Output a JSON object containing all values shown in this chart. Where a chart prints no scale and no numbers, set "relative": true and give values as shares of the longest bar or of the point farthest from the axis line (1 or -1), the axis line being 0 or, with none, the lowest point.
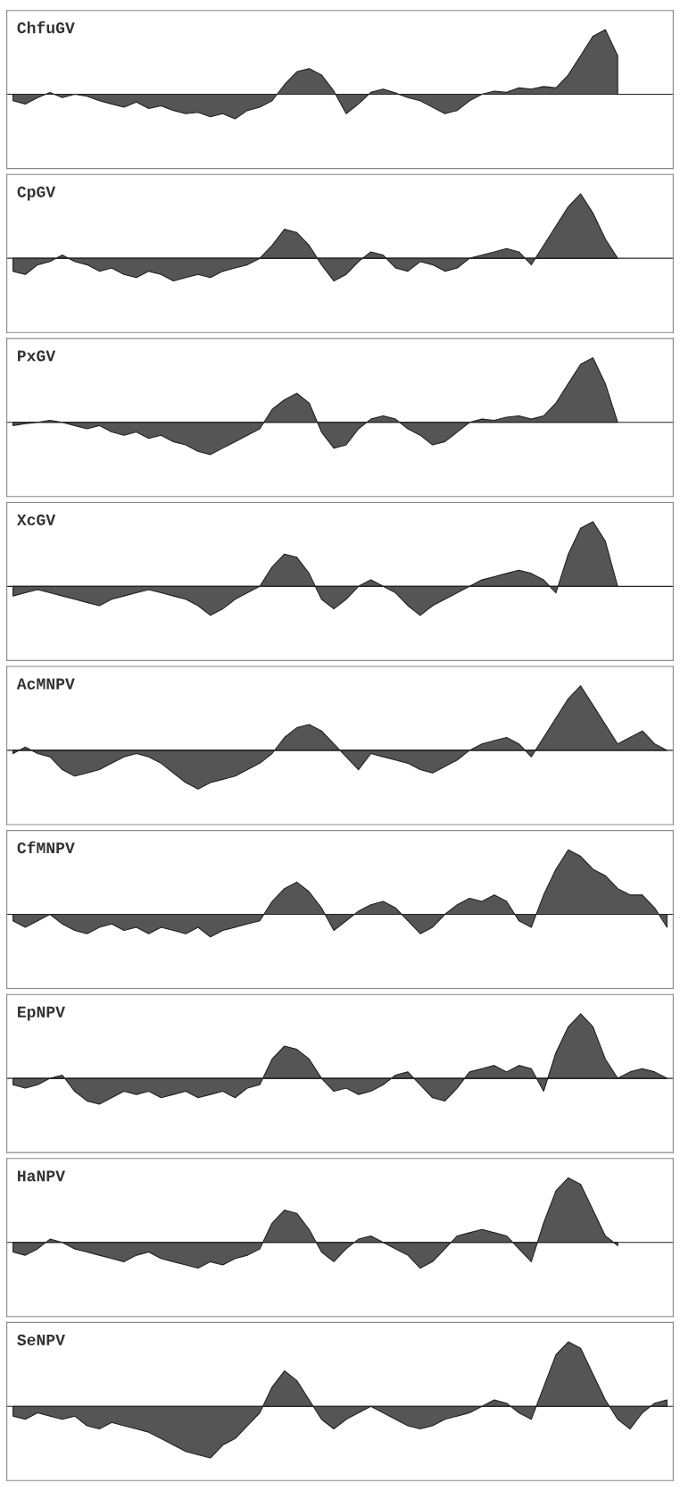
{
  "chart_data": [
    {
      "type": "area",
      "title": "ChfuGV",
      "relative": true,
      "color": "#555555",
      "categories": [
        null,
        null,
        null,
        null,
        null,
        null,
        null,
        null,
        null,
        null,
        null,
        null,
        null,
        null,
        null,
        null,
        null,
        null,
        null,
        null,
        null,
        null,
        null,
        null,
        null,
        null,
        null,
        null,
        null,
        null,
        null,
        null,
        null,
        null,
        null,
        null,
        null,
        null,
        null,
        null,
        null,
        null,
        null,
        null,
        null,
        null,
        null,
        null,
        null,
        null,
        null,
        null,
        null,
        null
      ],
      "values": [
        -0.1,
        -0.15,
        -0.05,
        0.03,
        -0.05,
        0.0,
        -0.03,
        -0.1,
        -0.15,
        -0.2,
        -0.12,
        -0.22,
        -0.18,
        -0.25,
        -0.3,
        -0.28,
        -0.35,
        -0.3,
        -0.38,
        -0.25,
        -0.2,
        -0.1,
        0.15,
        0.35,
        0.4,
        0.3,
        0.05,
        -0.3,
        -0.15,
        0.03,
        0.08,
        0.02,
        -0.05,
        -0.1,
        -0.2,
        -0.3,
        -0.25,
        -0.1,
        0.0,
        0.05,
        0.03,
        0.1,
        0.08,
        0.12,
        0.1,
        0.3,
        0.6,
        0.9,
        1.0,
        0.6,
        null,
        null,
        null,
        null
      ]
    },
    {
      "type": "area",
      "title": "CpGV",
      "relative": true,
      "color": "#555555",
      "categories": [
        null,
        null,
        null,
        null,
        null,
        null,
        null,
        null,
        null,
        null,
        null,
        null,
        null,
        null,
        null,
        null,
        null,
        null,
        null,
        null,
        null,
        null,
        null,
        null,
        null,
        null,
        null,
        null,
        null,
        null,
        null,
        null,
        null,
        null,
        null,
        null,
        null,
        null,
        null,
        null,
        null,
        null,
        null,
        null,
        null,
        null,
        null,
        null,
        null,
        null,
        null,
        null,
        null,
        null
      ],
      "values": [
        -0.2,
        -0.25,
        -0.1,
        -0.05,
        0.05,
        -0.05,
        -0.1,
        -0.2,
        -0.15,
        -0.25,
        -0.3,
        -0.2,
        -0.25,
        -0.35,
        -0.3,
        -0.25,
        -0.3,
        -0.2,
        -0.15,
        -0.1,
        0.0,
        0.2,
        0.45,
        0.4,
        0.2,
        -0.1,
        -0.35,
        -0.25,
        -0.05,
        0.1,
        0.05,
        -0.15,
        -0.2,
        -0.05,
        -0.1,
        -0.2,
        -0.15,
        0.0,
        0.05,
        0.1,
        0.15,
        0.1,
        -0.1,
        0.2,
        0.5,
        0.8,
        1.0,
        0.7,
        0.3,
        0.0,
        null,
        null,
        null,
        null
      ]
    },
    {
      "type": "area",
      "title": "PxGV",
      "relative": true,
      "color": "#555555",
      "categories": [
        null,
        null,
        null,
        null,
        null,
        null,
        null,
        null,
        null,
        null,
        null,
        null,
        null,
        null,
        null,
        null,
        null,
        null,
        null,
        null,
        null,
        null,
        null,
        null,
        null,
        null,
        null,
        null,
        null,
        null,
        null,
        null,
        null,
        null,
        null,
        null,
        null,
        null,
        null,
        null,
        null,
        null,
        null,
        null,
        null,
        null,
        null,
        null,
        null,
        null,
        null,
        null,
        null,
        null
      ],
      "values": [
        -0.05,
        -0.02,
        0.0,
        0.03,
        0.0,
        -0.05,
        -0.1,
        -0.05,
        -0.15,
        -0.2,
        -0.15,
        -0.25,
        -0.2,
        -0.3,
        -0.35,
        -0.45,
        -0.5,
        -0.4,
        -0.3,
        -0.2,
        -0.1,
        0.2,
        0.35,
        0.45,
        0.3,
        -0.15,
        -0.4,
        -0.35,
        -0.1,
        0.05,
        0.1,
        0.05,
        -0.1,
        -0.2,
        -0.35,
        -0.3,
        -0.15,
        0.0,
        0.05,
        0.03,
        0.08,
        0.1,
        0.05,
        0.1,
        0.3,
        0.6,
        0.9,
        1.0,
        0.6,
        0.0,
        null,
        null,
        null,
        null
      ]
    },
    {
      "type": "area",
      "title": "XcGV",
      "relative": true,
      "color": "#555555",
      "categories": [
        null,
        null,
        null,
        null,
        null,
        null,
        null,
        null,
        null,
        null,
        null,
        null,
        null,
        null,
        null,
        null,
        null,
        null,
        null,
        null,
        null,
        null,
        null,
        null,
        null,
        null,
        null,
        null,
        null,
        null,
        null,
        null,
        null,
        null,
        null,
        null,
        null,
        null,
        null,
        null,
        null,
        null,
        null,
        null,
        null,
        null,
        null,
        null,
        null,
        null,
        null,
        null,
        null,
        null
      ],
      "values": [
        -0.15,
        -0.1,
        -0.05,
        -0.1,
        -0.15,
        -0.2,
        -0.25,
        -0.3,
        -0.2,
        -0.15,
        -0.1,
        -0.05,
        -0.1,
        -0.15,
        -0.2,
        -0.3,
        -0.45,
        -0.35,
        -0.2,
        -0.1,
        0.0,
        0.3,
        0.5,
        0.45,
        0.2,
        -0.2,
        -0.35,
        -0.2,
        0.0,
        0.1,
        0.0,
        -0.1,
        -0.3,
        -0.45,
        -0.3,
        -0.2,
        -0.1,
        0.0,
        0.1,
        0.15,
        0.2,
        0.25,
        0.2,
        0.1,
        -0.1,
        0.5,
        0.9,
        1.0,
        0.7,
        0.0,
        null,
        null,
        null,
        null
      ]
    },
    {
      "type": "area",
      "title": "AcMNPV",
      "relative": true,
      "color": "#555555",
      "categories": [
        null,
        null,
        null,
        null,
        null,
        null,
        null,
        null,
        null,
        null,
        null,
        null,
        null,
        null,
        null,
        null,
        null,
        null,
        null,
        null,
        null,
        null,
        null,
        null,
        null,
        null,
        null,
        null,
        null,
        null,
        null,
        null,
        null,
        null,
        null,
        null,
        null,
        null,
        null,
        null,
        null,
        null,
        null,
        null,
        null,
        null,
        null,
        null,
        null,
        null,
        null,
        null,
        null,
        null
      ],
      "values": [
        -0.05,
        0.05,
        -0.05,
        -0.1,
        -0.3,
        -0.4,
        -0.35,
        -0.3,
        -0.2,
        -0.1,
        -0.05,
        -0.1,
        -0.2,
        -0.35,
        -0.5,
        -0.6,
        -0.5,
        -0.45,
        -0.4,
        -0.3,
        -0.2,
        -0.05,
        0.2,
        0.35,
        0.4,
        0.3,
        0.1,
        -0.1,
        -0.3,
        -0.05,
        -0.1,
        -0.15,
        -0.2,
        -0.3,
        -0.35,
        -0.25,
        -0.15,
        0.0,
        0.1,
        0.15,
        0.2,
        0.1,
        -0.1,
        0.2,
        0.5,
        0.8,
        1.0,
        0.7,
        0.4,
        0.1,
        0.2,
        0.3,
        0.1,
        0.0
      ]
    },
    {
      "type": "area",
      "title": "CfMNPV",
      "relative": true,
      "color": "#555555",
      "categories": [
        null,
        null,
        null,
        null,
        null,
        null,
        null,
        null,
        null,
        null,
        null,
        null,
        null,
        null,
        null,
        null,
        null,
        null,
        null,
        null,
        null,
        null,
        null,
        null,
        null,
        null,
        null,
        null,
        null,
        null,
        null,
        null,
        null,
        null,
        null,
        null,
        null,
        null,
        null,
        null,
        null,
        null,
        null,
        null,
        null,
        null,
        null,
        null,
        null,
        null,
        null,
        null,
        null,
        null
      ],
      "values": [
        -0.1,
        -0.2,
        -0.1,
        0.0,
        -0.15,
        -0.25,
        -0.3,
        -0.2,
        -0.15,
        -0.25,
        -0.2,
        -0.3,
        -0.2,
        -0.25,
        -0.3,
        -0.2,
        -0.35,
        -0.25,
        -0.2,
        -0.15,
        -0.1,
        0.2,
        0.4,
        0.5,
        0.35,
        0.1,
        -0.25,
        -0.1,
        0.05,
        0.15,
        0.2,
        0.1,
        -0.1,
        -0.3,
        -0.2,
        0.0,
        0.15,
        0.25,
        0.2,
        0.3,
        0.2,
        -0.1,
        -0.2,
        0.3,
        0.7,
        1.0,
        0.9,
        0.7,
        0.6,
        0.4,
        0.3,
        0.3,
        0.1,
        -0.2
      ]
    },
    {
      "type": "area",
      "title": "EpNPV",
      "relative": true,
      "color": "#555555",
      "categories": [
        null,
        null,
        null,
        null,
        null,
        null,
        null,
        null,
        null,
        null,
        null,
        null,
        null,
        null,
        null,
        null,
        null,
        null,
        null,
        null,
        null,
        null,
        null,
        null,
        null,
        null,
        null,
        null,
        null,
        null,
        null,
        null,
        null,
        null,
        null,
        null,
        null,
        null,
        null,
        null,
        null,
        null,
        null,
        null,
        null,
        null,
        null,
        null,
        null,
        null,
        null,
        null,
        null,
        null
      ],
      "values": [
        -0.1,
        -0.15,
        -0.1,
        0.0,
        0.05,
        -0.2,
        -0.35,
        -0.4,
        -0.3,
        -0.2,
        -0.25,
        -0.2,
        -0.3,
        -0.25,
        -0.2,
        -0.3,
        -0.25,
        -0.2,
        -0.3,
        -0.15,
        -0.1,
        0.3,
        0.5,
        0.45,
        0.3,
        0.0,
        -0.2,
        -0.15,
        -0.25,
        -0.2,
        -0.1,
        0.05,
        0.1,
        -0.1,
        -0.3,
        -0.35,
        -0.15,
        0.1,
        0.15,
        0.2,
        0.1,
        0.2,
        0.15,
        -0.2,
        0.4,
        0.8,
        1.0,
        0.8,
        0.3,
        0.0,
        0.1,
        0.15,
        0.1,
        0.0
      ]
    },
    {
      "type": "area",
      "title": "HaNPV",
      "relative": true,
      "color": "#555555",
      "categories": [
        null,
        null,
        null,
        null,
        null,
        null,
        null,
        null,
        null,
        null,
        null,
        null,
        null,
        null,
        null,
        null,
        null,
        null,
        null,
        null,
        null,
        null,
        null,
        null,
        null,
        null,
        null,
        null,
        null,
        null,
        null,
        null,
        null,
        null,
        null,
        null,
        null,
        null,
        null,
        null,
        null,
        null,
        null,
        null,
        null,
        null,
        null,
        null,
        null,
        null,
        null,
        null,
        null,
        null
      ],
      "values": [
        -0.15,
        -0.2,
        -0.1,
        0.05,
        0.0,
        -0.1,
        -0.15,
        -0.2,
        -0.25,
        -0.3,
        -0.2,
        -0.15,
        -0.25,
        -0.3,
        -0.35,
        -0.4,
        -0.3,
        -0.35,
        -0.25,
        -0.2,
        -0.1,
        0.3,
        0.5,
        0.45,
        0.2,
        -0.15,
        -0.3,
        -0.1,
        0.05,
        0.1,
        0.0,
        -0.1,
        -0.2,
        -0.4,
        -0.3,
        -0.1,
        0.1,
        0.15,
        0.2,
        0.15,
        0.1,
        -0.1,
        -0.3,
        0.3,
        0.8,
        1.0,
        0.9,
        0.5,
        0.1,
        -0.05,
        null,
        null,
        null,
        null
      ]
    },
    {
      "type": "area",
      "title": "SeNPV",
      "relative": true,
      "color": "#555555",
      "categories": [
        null,
        null,
        null,
        null,
        null,
        null,
        null,
        null,
        null,
        null,
        null,
        null,
        null,
        null,
        null,
        null,
        null,
        null,
        null,
        null,
        null,
        null,
        null,
        null,
        null,
        null,
        null,
        null,
        null,
        null,
        null,
        null,
        null,
        null,
        null,
        null,
        null,
        null,
        null,
        null,
        null,
        null,
        null,
        null,
        null,
        null,
        null,
        null,
        null,
        null,
        null,
        null,
        null,
        null
      ],
      "values": [
        -0.15,
        -0.2,
        -0.1,
        -0.15,
        -0.2,
        -0.15,
        -0.3,
        -0.35,
        -0.25,
        -0.3,
        -0.35,
        -0.4,
        -0.5,
        -0.6,
        -0.7,
        -0.75,
        -0.8,
        -0.6,
        -0.5,
        -0.3,
        -0.1,
        0.3,
        0.55,
        0.4,
        0.1,
        -0.2,
        -0.35,
        -0.2,
        -0.1,
        0.0,
        -0.1,
        -0.2,
        -0.3,
        -0.35,
        -0.3,
        -0.2,
        -0.15,
        -0.1,
        0.0,
        0.1,
        0.05,
        -0.1,
        -0.2,
        0.3,
        0.8,
        1.0,
        0.9,
        0.5,
        0.1,
        -0.2,
        -0.35,
        -0.1,
        0.05,
        0.1
      ]
    }
  ]
}
